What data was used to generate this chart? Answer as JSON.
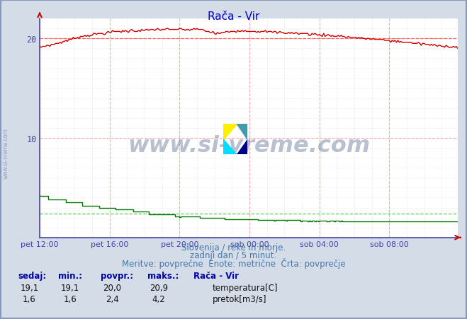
{
  "title": "Rača - Vir",
  "title_color": "#0000cc",
  "bg_color": "#d4dce8",
  "plot_bg_color": "#ffffff",
  "xlabel_ticks": [
    "pet 12:00",
    "pet 16:00",
    "pet 20:00",
    "sob 00:00",
    "sob 04:00",
    "sob 08:00"
  ],
  "tick_positions": [
    0,
    48,
    96,
    144,
    192,
    240
  ],
  "total_points": 288,
  "ylim": [
    0,
    22
  ],
  "yticks": [
    10,
    20
  ],
  "temp_color": "#cc0000",
  "flow_color": "#007700",
  "avg_line_color_temp": "#ff6666",
  "avg_line_color_flow": "#55cc55",
  "temp_min": 19.1,
  "temp_max": 20.9,
  "temp_avg": 20.0,
  "temp_current": 19.1,
  "flow_min": 1.6,
  "flow_max": 4.2,
  "flow_avg": 2.4,
  "flow_current": 1.6,
  "watermark_text": "www.si-vreme.com",
  "watermark_color": "#1a3060",
  "watermark_alpha": 0.3,
  "footer_line1": "Slovenija / reke in morje.",
  "footer_line2": "zadnji dan / 5 minut.",
  "footer_line3": "Meritve: povprečne  Enote: metrične  Črta: povprečje",
  "footer_color": "#4477aa",
  "label_color": "#0000aa",
  "tick_color": "#4444aa",
  "sidebar_text": "www.si-vreme.com",
  "station_label": "Rača - Vir",
  "legend_temp": "temperatura[C]",
  "legend_flow": "pretok[m3/s]",
  "grid_major_color": "#ffaaaa",
  "grid_minor_color": "#dddddd",
  "spine_color": "#8888bb",
  "arrow_color": "#cc0000"
}
